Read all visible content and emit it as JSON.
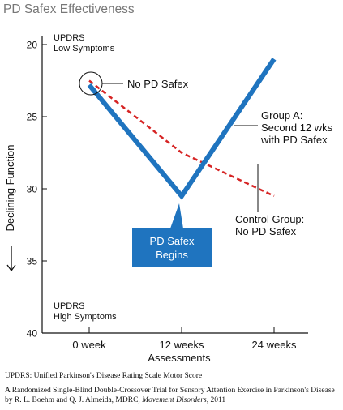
{
  "chart_data": {
    "type": "line",
    "title": "PD Safex Effectiveness",
    "xlabel": "Assessments",
    "ylabel": "Declining Function",
    "categories": [
      "0 week",
      "12 weeks",
      "24 weeks"
    ],
    "yticks": [
      20,
      25,
      30,
      35,
      40
    ],
    "ylim": [
      20,
      40
    ],
    "y_inverted": true,
    "y_top_label": [
      "UPDRS",
      "Low Symptoms"
    ],
    "y_bottom_label": [
      "UPDRS",
      "High Symptoms"
    ],
    "series": [
      {
        "values": [
          22.8,
          30.5,
          21.0
        ],
        "color": "#1f74bf",
        "style": "solid"
      },
      {
        "values": [
          22.5,
          27.5,
          30.5
        ],
        "color": "#d62424",
        "style": "dashed"
      }
    ],
    "annotations": {
      "start": "No PD Safex",
      "group_a": [
        "Group A:",
        "Second 12 wks",
        "with PD Safex"
      ],
      "control": [
        "Control Group:",
        "No PD Safex"
      ],
      "begins": [
        "PD Safex",
        "Begins"
      ]
    },
    "accent_color": "#1f74bf"
  },
  "footnotes": {
    "updrs": "UPDRS: Unified Parkinson's Disease Rating Scale Motor Score",
    "citation_prefix": "A Randomized Single-Blind Double-Crossover Trial for Sensory Attention Exercise in Parkinson's Disease by R. L. Boehm and Q. J. Almeida, MDRC, ",
    "citation_journal": "Movement Disorders",
    "citation_suffix": ", 2011"
  }
}
